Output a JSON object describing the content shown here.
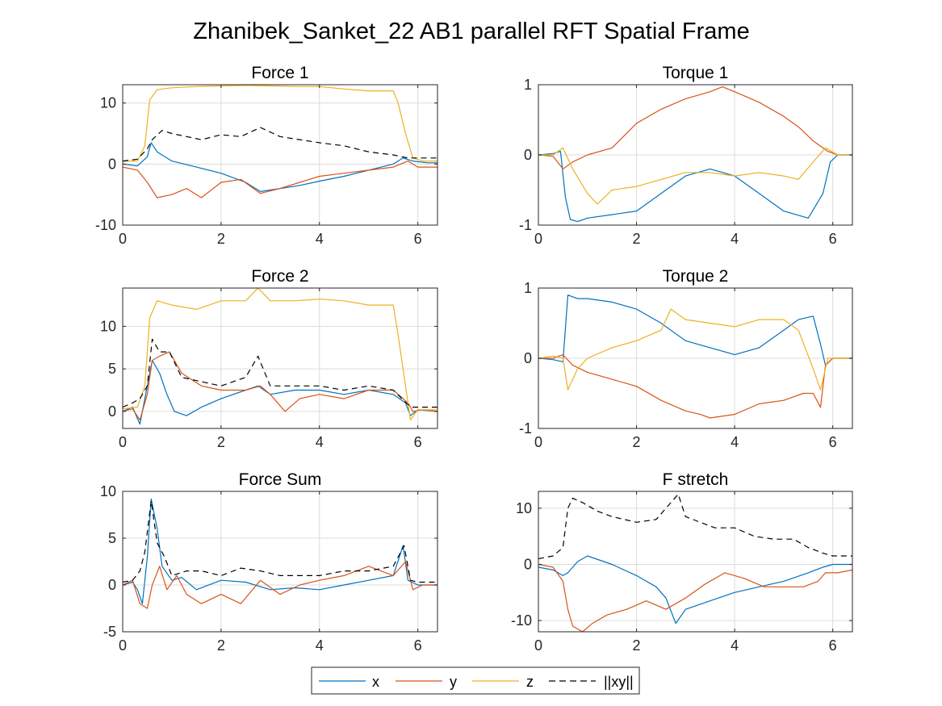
{
  "figure": {
    "title": "Zhanibek_Sanket_22 AB1 parallel RFT Spatial Frame"
  },
  "colors": {
    "x": "#0072BD",
    "y": "#D95319",
    "z": "#EDB120",
    "xy": "#000000",
    "grid": "#DCDCDC",
    "axis": "#262626"
  },
  "legend": {
    "placement": "bottom-center",
    "orientation": "horizontal",
    "entries": [
      "x",
      "y",
      "z",
      "||xy||"
    ]
  },
  "chart_data": [
    {
      "type": "line",
      "title": "Force 1",
      "xlim": [
        0,
        6.4
      ],
      "ylim": [
        -10,
        13
      ],
      "xticks": [
        "0",
        "2",
        "4",
        "6"
      ],
      "yticks": [
        "-10",
        "0",
        "10"
      ],
      "ytick_values": [
        -10,
        0,
        10
      ],
      "grid": true,
      "series": [
        {
          "name": "x",
          "style": "solid",
          "x": [
            0,
            0.3,
            0.5,
            0.58,
            0.7,
            1.0,
            1.5,
            2.0,
            2.5,
            2.8,
            3.2,
            3.6,
            4.0,
            4.5,
            5.0,
            5.5,
            5.7,
            5.9,
            6.2,
            6.4
          ],
          "y": [
            0,
            -0.3,
            1.2,
            3.5,
            2.0,
            0.5,
            -0.5,
            -1.5,
            -3.0,
            -4.5,
            -4.0,
            -3.5,
            -2.8,
            -2.0,
            -1.0,
            0,
            1.0,
            0.5,
            0.2,
            0.2
          ]
        },
        {
          "name": "y",
          "style": "solid",
          "x": [
            0,
            0.3,
            0.5,
            0.7,
            1.0,
            1.3,
            1.6,
            2.0,
            2.4,
            2.8,
            3.2,
            3.6,
            4.0,
            4.5,
            5.0,
            5.5,
            5.8,
            6.0,
            6.4
          ],
          "y": [
            -0.5,
            -1.0,
            -3.0,
            -5.5,
            -5.0,
            -4.0,
            -5.5,
            -3.0,
            -2.5,
            -4.8,
            -4.0,
            -3.0,
            -2.0,
            -1.5,
            -1.0,
            -0.5,
            0.5,
            -0.5,
            -0.5
          ]
        },
        {
          "name": "z",
          "style": "solid",
          "x": [
            0,
            0.3,
            0.45,
            0.55,
            0.7,
            1.0,
            1.5,
            2.0,
            2.5,
            3.0,
            3.5,
            4.0,
            4.5,
            5.0,
            5.5,
            5.6,
            5.75,
            5.9,
            6.1,
            6.4
          ],
          "y": [
            0.5,
            0.5,
            3.0,
            10.5,
            12.2,
            12.5,
            12.7,
            12.8,
            12.9,
            12.8,
            12.7,
            12.7,
            12.3,
            12.0,
            12.0,
            10.0,
            5.0,
            1.0,
            0.5,
            0.5
          ]
        },
        {
          "name": "||xy||",
          "style": "dashed",
          "x": [
            0,
            0.3,
            0.5,
            0.6,
            0.8,
            1.0,
            1.3,
            1.6,
            2.0,
            2.4,
            2.8,
            3.2,
            3.6,
            4.0,
            4.5,
            5.0,
            5.5,
            5.8,
            6.0,
            6.4
          ],
          "y": [
            0.5,
            0.8,
            2.5,
            4.0,
            5.5,
            5.0,
            4.5,
            4.0,
            4.8,
            4.5,
            6.0,
            4.5,
            4.0,
            3.5,
            3.0,
            2.0,
            1.5,
            1.0,
            1.0,
            1.0
          ]
        }
      ]
    },
    {
      "type": "line",
      "title": "Torque 1",
      "xlim": [
        0,
        6.4
      ],
      "ylim": [
        -1,
        1
      ],
      "xticks": [
        "0",
        "2",
        "4",
        "6"
      ],
      "yticks": [
        "-1",
        "0",
        "1"
      ],
      "ytick_values": [
        -1,
        0,
        1
      ],
      "grid": true,
      "series": [
        {
          "name": "x",
          "style": "solid",
          "x": [
            0,
            0.3,
            0.45,
            0.55,
            0.65,
            0.8,
            1.0,
            1.5,
            2.0,
            2.5,
            3.0,
            3.5,
            4.0,
            4.5,
            5.0,
            5.5,
            5.8,
            5.95,
            6.1,
            6.4
          ],
          "y": [
            0,
            0.02,
            0.05,
            -0.6,
            -0.92,
            -0.95,
            -0.9,
            -0.85,
            -0.8,
            -0.55,
            -0.3,
            -0.2,
            -0.3,
            -0.55,
            -0.8,
            -0.9,
            -0.55,
            -0.1,
            0,
            0
          ]
        },
        {
          "name": "y",
          "style": "solid",
          "x": [
            0,
            0.3,
            0.5,
            0.7,
            1.0,
            1.5,
            2.0,
            2.5,
            3.0,
            3.5,
            3.75,
            4.0,
            4.5,
            5.0,
            5.3,
            5.6,
            5.9,
            6.1,
            6.4
          ],
          "y": [
            0,
            -0.02,
            -0.2,
            -0.1,
            0.0,
            0.1,
            0.45,
            0.65,
            0.8,
            0.9,
            0.97,
            0.9,
            0.75,
            0.55,
            0.4,
            0.2,
            0.05,
            0,
            0
          ]
        },
        {
          "name": "z",
          "style": "solid",
          "x": [
            0,
            0.3,
            0.5,
            0.7,
            1.0,
            1.2,
            1.5,
            2.0,
            2.5,
            3.0,
            3.5,
            4.0,
            4.5,
            5.0,
            5.3,
            5.6,
            5.85,
            6.1,
            6.4
          ],
          "y": [
            0,
            0.0,
            0.1,
            -0.2,
            -0.55,
            -0.7,
            -0.5,
            -0.45,
            -0.35,
            -0.25,
            -0.25,
            -0.3,
            -0.25,
            -0.3,
            -0.35,
            -0.1,
            0.1,
            0,
            0
          ]
        }
      ]
    },
    {
      "type": "line",
      "title": "Force 2",
      "xlim": [
        0,
        6.4
      ],
      "ylim": [
        -2,
        14.5
      ],
      "xticks": [
        "0",
        "2",
        "4",
        "6"
      ],
      "yticks": [
        "0",
        "5",
        "10"
      ],
      "ytick_values": [
        0,
        5,
        10
      ],
      "grid": true,
      "series": [
        {
          "name": "x",
          "style": "solid",
          "x": [
            0,
            0.2,
            0.35,
            0.5,
            0.6,
            0.75,
            0.9,
            1.05,
            1.3,
            1.6,
            2.0,
            2.5,
            2.75,
            3.0,
            3.5,
            4.0,
            4.5,
            5.0,
            5.5,
            5.75,
            5.85,
            6.0,
            6.4
          ],
          "y": [
            0,
            0.5,
            -1.5,
            3.0,
            6.0,
            4.5,
            2.0,
            0.0,
            -0.5,
            0.5,
            1.5,
            2.5,
            3.0,
            2.0,
            2.5,
            2.5,
            2.0,
            2.5,
            2.0,
            1.0,
            -0.5,
            0.2,
            0
          ]
        },
        {
          "name": "y",
          "style": "solid",
          "x": [
            0,
            0.2,
            0.35,
            0.5,
            0.6,
            0.75,
            0.95,
            1.2,
            1.6,
            2.0,
            2.5,
            2.8,
            3.0,
            3.3,
            3.6,
            4.0,
            4.5,
            5.0,
            5.5,
            5.8,
            5.9,
            6.1,
            6.4
          ],
          "y": [
            0,
            0.3,
            -1.0,
            2.0,
            6.0,
            6.5,
            7.0,
            4.5,
            3.0,
            2.5,
            2.5,
            3.0,
            2.0,
            0.0,
            1.5,
            2.0,
            1.5,
            2.5,
            2.5,
            1.0,
            0.0,
            0.2,
            0
          ]
        },
        {
          "name": "z",
          "style": "solid",
          "x": [
            0,
            0.3,
            0.45,
            0.55,
            0.7,
            1.0,
            1.5,
            2.0,
            2.5,
            2.75,
            3.0,
            3.5,
            4.0,
            4.5,
            5.0,
            5.5,
            5.6,
            5.75,
            5.85,
            6.0,
            6.4
          ],
          "y": [
            0.3,
            0.5,
            3.0,
            11.0,
            13.0,
            12.5,
            12.0,
            13.0,
            13.0,
            14.5,
            13.0,
            13.0,
            13.2,
            13.0,
            12.5,
            12.5,
            9.0,
            3.0,
            -1.0,
            0.2,
            0.2
          ]
        },
        {
          "name": "||xy||",
          "style": "dashed",
          "x": [
            0,
            0.2,
            0.35,
            0.5,
            0.6,
            0.75,
            0.95,
            1.2,
            1.6,
            2.0,
            2.5,
            2.75,
            3.0,
            3.5,
            4.0,
            4.5,
            5.0,
            5.5,
            5.8,
            5.9,
            6.1,
            6.4
          ],
          "y": [
            0.5,
            1.0,
            1.5,
            3.0,
            8.5,
            7.0,
            7.0,
            4.0,
            3.5,
            3.0,
            4.0,
            6.5,
            3.0,
            3.0,
            3.0,
            2.5,
            3.0,
            2.5,
            0.8,
            0.5,
            0.5,
            0.5
          ]
        }
      ]
    },
    {
      "type": "line",
      "title": "Torque 2",
      "xlim": [
        0,
        6.4
      ],
      "ylim": [
        -1,
        1
      ],
      "xticks": [
        "0",
        "2",
        "4",
        "6"
      ],
      "yticks": [
        "-1",
        "0",
        "1"
      ],
      "ytick_values": [
        -1,
        0,
        1
      ],
      "grid": true,
      "series": [
        {
          "name": "x",
          "style": "solid",
          "x": [
            0,
            0.3,
            0.5,
            0.6,
            0.8,
            1.0,
            1.5,
            2.0,
            2.5,
            3.0,
            3.5,
            4.0,
            4.5,
            5.0,
            5.3,
            5.6,
            5.75,
            5.85,
            6.0,
            6.4
          ],
          "y": [
            0,
            -0.02,
            -0.05,
            0.9,
            0.85,
            0.85,
            0.8,
            0.7,
            0.5,
            0.25,
            0.15,
            0.05,
            0.15,
            0.4,
            0.55,
            0.6,
            0.2,
            -0.1,
            0,
            0
          ]
        },
        {
          "name": "y",
          "style": "solid",
          "x": [
            0,
            0.3,
            0.5,
            0.7,
            1.0,
            1.5,
            2.0,
            2.5,
            3.0,
            3.3,
            3.5,
            4.0,
            4.5,
            5.0,
            5.4,
            5.6,
            5.75,
            5.85,
            6.0,
            6.4
          ],
          "y": [
            0,
            0.0,
            0.05,
            -0.1,
            -0.2,
            -0.3,
            -0.4,
            -0.6,
            -0.75,
            -0.8,
            -0.85,
            -0.8,
            -0.65,
            -0.6,
            -0.5,
            -0.5,
            -0.7,
            -0.1,
            0,
            0
          ]
        },
        {
          "name": "z",
          "style": "solid",
          "x": [
            0,
            0.3,
            0.5,
            0.6,
            0.8,
            1.0,
            1.5,
            2.0,
            2.5,
            2.7,
            3.0,
            3.5,
            4.0,
            4.5,
            5.0,
            5.3,
            5.6,
            5.75,
            5.9,
            6.4
          ],
          "y": [
            0,
            0.03,
            0.0,
            -0.45,
            -0.15,
            0.0,
            0.15,
            0.25,
            0.4,
            0.7,
            0.55,
            0.5,
            0.45,
            0.55,
            0.55,
            0.4,
            -0.15,
            -0.45,
            0,
            0
          ]
        }
      ]
    },
    {
      "type": "line",
      "title": "Force Sum",
      "xlim": [
        0,
        6.4
      ],
      "ylim": [
        -5,
        10
      ],
      "xticks": [
        "0",
        "2",
        "4",
        "6"
      ],
      "yticks": [
        "-5",
        "0",
        "5",
        "10"
      ],
      "ytick_values": [
        -5,
        0,
        5,
        10
      ],
      "grid": true,
      "series": [
        {
          "name": "x",
          "style": "solid",
          "x": [
            0,
            0.2,
            0.3,
            0.4,
            0.5,
            0.58,
            0.7,
            0.8,
            1.0,
            1.2,
            1.5,
            2.0,
            2.5,
            3.0,
            3.5,
            4.0,
            4.5,
            5.0,
            5.5,
            5.7,
            5.8,
            6.0,
            6.4
          ],
          "y": [
            0,
            0.3,
            -0.5,
            -2.0,
            3.0,
            9.2,
            6.0,
            2.0,
            0.5,
            0.8,
            -0.5,
            0.5,
            0.3,
            -0.5,
            -0.3,
            -0.5,
            0.0,
            0.5,
            1.0,
            4.2,
            0.5,
            0,
            0
          ]
        },
        {
          "name": "y",
          "style": "solid",
          "x": [
            0,
            0.2,
            0.35,
            0.5,
            0.6,
            0.75,
            0.9,
            1.1,
            1.3,
            1.6,
            2.0,
            2.4,
            2.8,
            3.2,
            3.6,
            4.0,
            4.5,
            5.0,
            5.5,
            5.75,
            5.9,
            6.1,
            6.4
          ],
          "y": [
            0,
            0.5,
            -2.0,
            -2.5,
            0.0,
            2.0,
            -0.5,
            1.0,
            -1.0,
            -2.0,
            -1.0,
            -2.0,
            0.5,
            -1.0,
            0.0,
            0.5,
            1.0,
            2.0,
            1.0,
            2.5,
            -0.5,
            0,
            0
          ]
        },
        {
          "name": "||xy||",
          "style": "dashed",
          "x": [
            0,
            0.2,
            0.35,
            0.45,
            0.58,
            0.7,
            0.85,
            1.0,
            1.3,
            1.6,
            2.0,
            2.4,
            2.8,
            3.2,
            3.6,
            4.0,
            4.5,
            5.0,
            5.5,
            5.72,
            5.85,
            6.0,
            6.4
          ],
          "y": [
            0.3,
            0.5,
            1.5,
            3.5,
            9.0,
            4.5,
            3.0,
            1.0,
            1.5,
            1.5,
            1.0,
            1.8,
            1.5,
            1.0,
            1.0,
            1.0,
            1.5,
            1.5,
            2.0,
            4.2,
            0.5,
            0.3,
            0.3
          ]
        }
      ]
    },
    {
      "type": "line",
      "title": "F stretch",
      "xlim": [
        0,
        6.4
      ],
      "ylim": [
        -12,
        13
      ],
      "xticks": [
        "0",
        "2",
        "4",
        "6"
      ],
      "yticks": [
        "-10",
        "0",
        "10"
      ],
      "ytick_values": [
        -10,
        0,
        10
      ],
      "grid": true,
      "series": [
        {
          "name": "x",
          "style": "solid",
          "x": [
            0,
            0.3,
            0.5,
            0.6,
            0.8,
            1.0,
            1.5,
            2.0,
            2.4,
            2.6,
            2.8,
            3.0,
            3.5,
            4.0,
            4.5,
            5.0,
            5.5,
            5.8,
            6.0,
            6.4
          ],
          "y": [
            -0.5,
            -1.0,
            -2.0,
            -1.5,
            0.5,
            1.5,
            0.0,
            -2.0,
            -4.0,
            -6.0,
            -10.5,
            -8.0,
            -6.5,
            -5.0,
            -4.0,
            -3.0,
            -1.5,
            -0.5,
            0,
            0
          ]
        },
        {
          "name": "y",
          "style": "solid",
          "x": [
            0,
            0.3,
            0.5,
            0.6,
            0.7,
            0.9,
            1.1,
            1.4,
            1.8,
            2.2,
            2.6,
            3.0,
            3.4,
            3.8,
            4.2,
            4.6,
            5.0,
            5.4,
            5.7,
            5.85,
            6.1,
            6.4
          ],
          "y": [
            0,
            -0.5,
            -3.0,
            -8.0,
            -11.0,
            -12.0,
            -10.5,
            -9.0,
            -8.0,
            -6.5,
            -8.0,
            -6.0,
            -3.5,
            -1.5,
            -2.5,
            -4.0,
            -4.0,
            -4.0,
            -3.0,
            -1.5,
            -1.5,
            -1.0
          ]
        },
        {
          "name": "||xy||",
          "style": "dashed",
          "x": [
            0,
            0.3,
            0.5,
            0.6,
            0.7,
            0.9,
            1.2,
            1.5,
            2.0,
            2.4,
            2.7,
            2.85,
            3.0,
            3.3,
            3.6,
            4.0,
            4.4,
            4.8,
            5.2,
            5.5,
            5.8,
            6.0,
            6.4
          ],
          "y": [
            1.0,
            1.5,
            3.0,
            10.0,
            11.8,
            11.0,
            9.5,
            8.5,
            7.5,
            8.0,
            11.0,
            12.5,
            8.5,
            7.5,
            6.5,
            6.5,
            5.0,
            4.5,
            4.5,
            3.0,
            2.0,
            1.5,
            1.5
          ]
        }
      ]
    }
  ]
}
